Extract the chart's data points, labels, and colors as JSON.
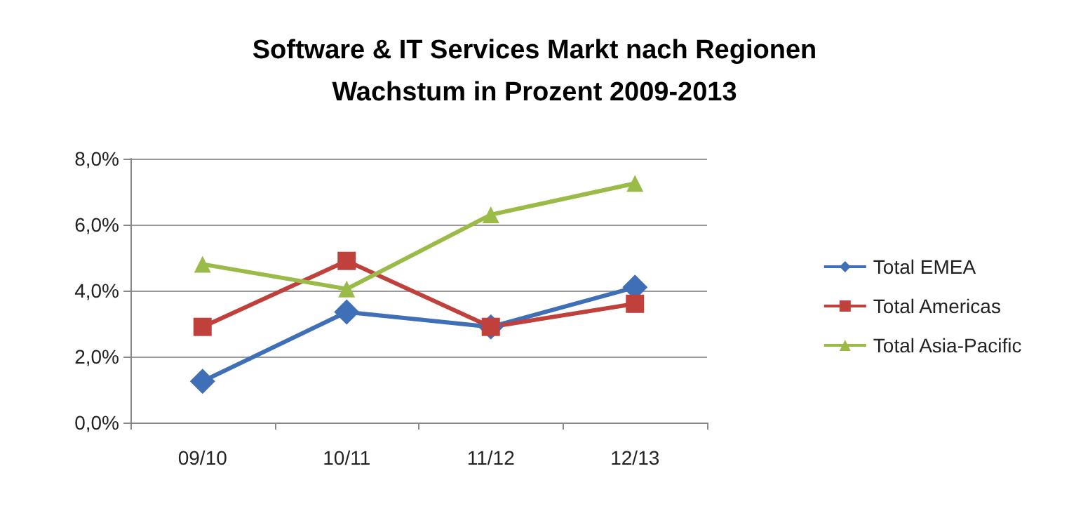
{
  "chart_data": {
    "type": "line",
    "title": "Software & IT Services Markt nach Regionen\nWachstum in Prozent 2009-2013",
    "categories": [
      "09/10",
      "10/11",
      "11/12",
      "12/13"
    ],
    "series": [
      {
        "name": "Total EMEA",
        "color": "#3f6fb6",
        "values": [
          1.25,
          3.35,
          2.9,
          4.1
        ],
        "marker": "diamond"
      },
      {
        "name": "Total Americas",
        "color": "#c0403c",
        "values": [
          2.9,
          4.9,
          2.9,
          3.6
        ],
        "marker": "square"
      },
      {
        "name": "Total Asia-Pacific",
        "color": "#9bbb48",
        "values": [
          4.8,
          4.05,
          6.3,
          7.25
        ],
        "marker": "triangle"
      }
    ],
    "ylim": [
      0,
      8
    ],
    "yticks": [
      {
        "value": 0,
        "label": "0,0%"
      },
      {
        "value": 2,
        "label": "2,0%"
      },
      {
        "value": 4,
        "label": "4,0%"
      },
      {
        "value": 6,
        "label": "6,0%"
      },
      {
        "value": 8,
        "label": "8,0%"
      }
    ],
    "grid": "y",
    "legend": "right",
    "line_style": "solid"
  }
}
